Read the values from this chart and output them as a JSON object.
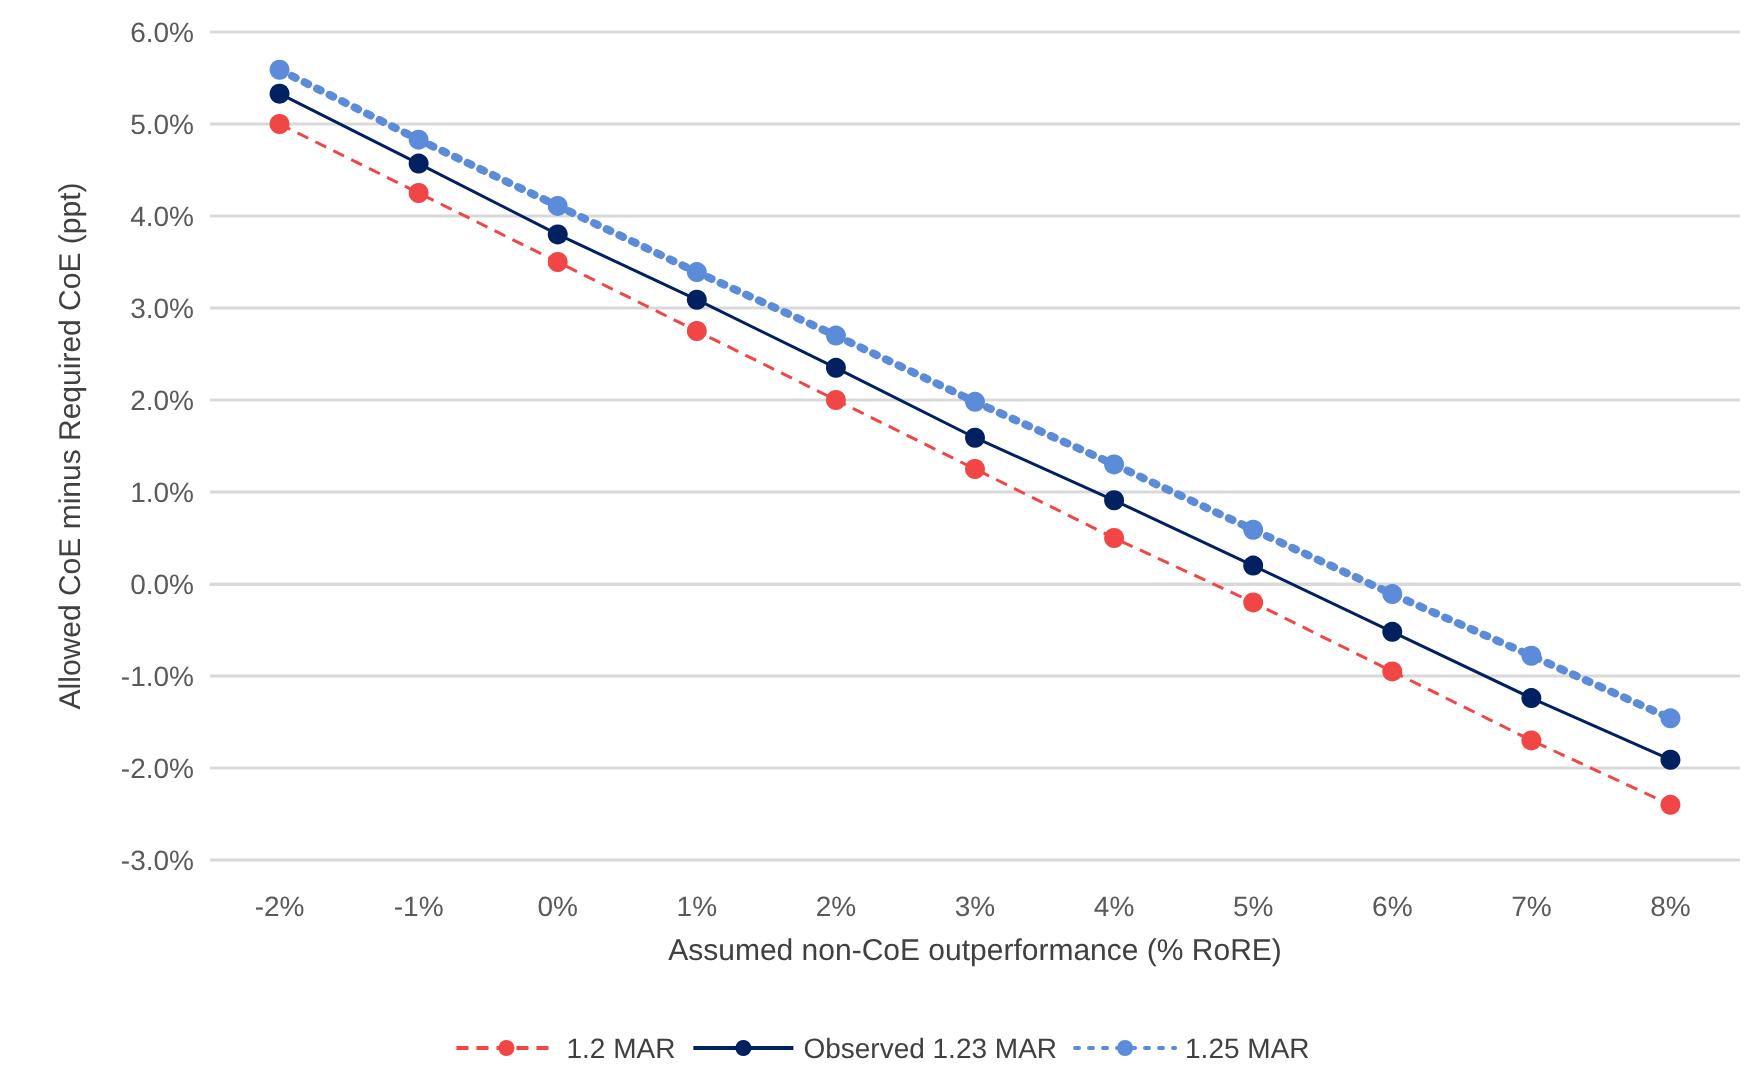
{
  "chart_data": {
    "type": "line",
    "xlabel": "Assumed non-CoE outperformance (% RoRE)",
    "ylabel": "Allowed CoE minus Required CoE (ppt)",
    "categories": [
      "-2%",
      "-1%",
      "0%",
      "1%",
      "2%",
      "3%",
      "4%",
      "5%",
      "6%",
      "7%",
      "8%"
    ],
    "series": [
      {
        "name": "1.2 MAR",
        "color": "#f04646",
        "line_style": "dashed",
        "values": [
          5.0,
          4.25,
          3.5,
          2.75,
          2.0,
          1.25,
          0.5,
          -0.2,
          -0.95,
          -1.7,
          -2.4
        ]
      },
      {
        "name": "Observed 1.23 MAR",
        "color": "#002060",
        "line_style": "solid",
        "values": [
          5.33,
          4.57,
          3.8,
          3.09,
          2.35,
          1.59,
          0.91,
          0.2,
          -0.52,
          -1.24,
          -1.91
        ]
      },
      {
        "name": "1.25 MAR",
        "color": "#5b8bd9",
        "line_style": "dotted",
        "values": [
          5.59,
          4.83,
          4.11,
          3.39,
          2.7,
          1.98,
          1.3,
          0.59,
          -0.11,
          -0.78,
          -1.46
        ]
      }
    ],
    "ylim": [
      -3,
      6
    ],
    "yticks": [
      {
        "value": -3,
        "label": "-3.0%"
      },
      {
        "value": -2,
        "label": "-2.0%"
      },
      {
        "value": -1,
        "label": "-1.0%"
      },
      {
        "value": 0,
        "label": "0.0%"
      },
      {
        "value": 1,
        "label": "1.0%"
      },
      {
        "value": 2,
        "label": "2.0%"
      },
      {
        "value": 3,
        "label": "3.0%"
      },
      {
        "value": 4,
        "label": "4.0%"
      },
      {
        "value": 5,
        "label": "5.0%"
      },
      {
        "value": 6,
        "label": "6.0%"
      }
    ],
    "grid": "y",
    "legend": "bottom",
    "marker": "circle"
  }
}
